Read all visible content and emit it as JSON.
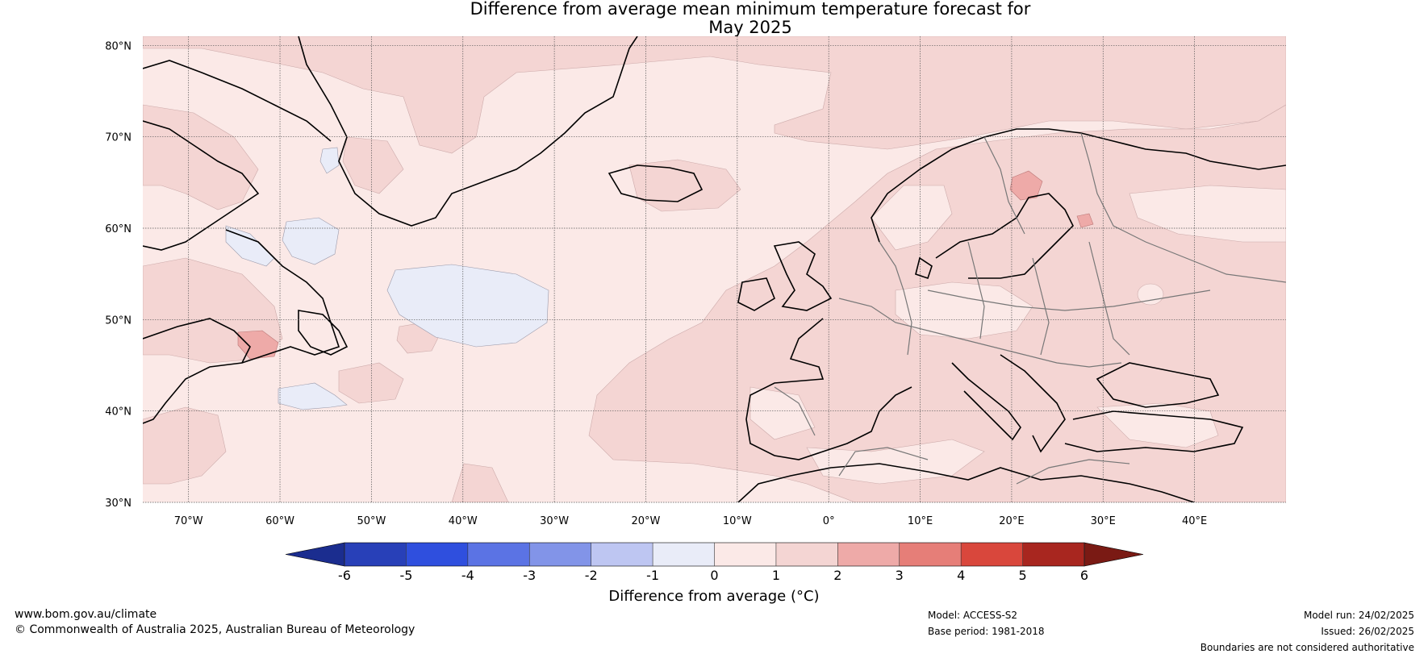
{
  "title_line1": "Difference from average mean minimum temperature forecast for",
  "title_line2": "May 2025",
  "map": {
    "lon_ticks": [
      "70°W",
      "60°W",
      "50°W",
      "40°W",
      "30°W",
      "20°W",
      "10°W",
      "0°",
      "10°E",
      "20°E",
      "30°E",
      "40°E"
    ],
    "lat_ticks": [
      "80°N",
      "70°N",
      "60°N",
      "50°N",
      "40°N",
      "30°N"
    ],
    "background_fill": "#fbe9e7",
    "field_colors": {
      "0_to_1": "#fbe9e7",
      "1_to_2": "#f4d5d3",
      "-1_to_0": "#e9ecf8",
      "2_to_3": "#eeaaa8"
    }
  },
  "colorbar": {
    "ticks": [
      "-6",
      "-5",
      "-4",
      "-3",
      "-2",
      "-1",
      "0",
      "1",
      "2",
      "3",
      "4",
      "5",
      "6"
    ],
    "colors": [
      "#1b2d8f",
      "#2840b8",
      "#2f4fde",
      "#5b73e4",
      "#8294e8",
      "#bec6f2",
      "#e9ecf8",
      "#fbe9e7",
      "#f4d5d3",
      "#eeaaa8",
      "#e67e78",
      "#d9473c",
      "#a8261f",
      "#7a1a14"
    ],
    "label": "Difference from average (°C)"
  },
  "footer": {
    "url": "www.bom.gov.au/climate",
    "copyright": "© Commonwealth of Australia 2025, Australian Bureau of Meteorology",
    "model": "Model: ACCESS-S2",
    "base_period": "Base period: 1981-2018",
    "model_run": "Model run: 24/02/2025",
    "issued": "Issued: 26/02/2025",
    "disclaimer": "Boundaries are not considered authoritative"
  }
}
